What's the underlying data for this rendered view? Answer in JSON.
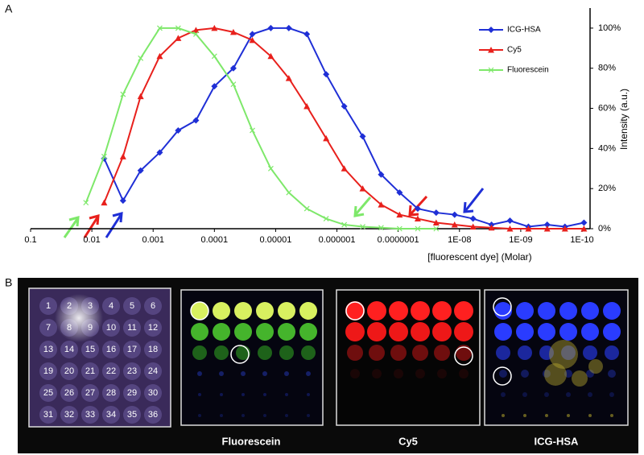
{
  "panel_labels": [
    "A",
    "B"
  ],
  "chart_data": {
    "type": "line",
    "x_label": "[fluorescent dye] (Molar)",
    "y_label": "Intensity (a.u.)",
    "x_scale": "log",
    "y_axis_side": "right",
    "legend": "top-right",
    "grid": false,
    "x": [
      0.0125,
      0.0063,
      0.0031,
      0.0016,
      0.00078,
      0.00039,
      0.0002,
      0.0001,
      4.9e-05,
      2.4e-05,
      1.2e-05,
      6.1e-06,
      3.1e-06,
      1.5e-06,
      7.6e-07,
      3.8e-07,
      1.9e-07,
      9.5e-08,
      4.8e-08,
      2.4e-08,
      1.2e-08,
      6e-09,
      3e-09,
      1.5e-09,
      7.5e-10,
      3.7e-10,
      1.9e-10,
      9.3e-11
    ],
    "series": [
      {
        "name": "ICG-HSA",
        "color": "#1f2fd6",
        "marker": "diamond",
        "values": [
          null,
          35,
          14,
          29,
          38,
          49,
          54,
          71,
          80,
          97,
          100,
          100,
          97,
          77,
          61,
          46,
          27,
          18,
          10,
          8,
          7,
          5,
          2,
          4,
          1,
          2,
          1,
          3
        ]
      },
      {
        "name": "Cy5",
        "color": "#e8201c",
        "marker": "triangle",
        "values": [
          null,
          13,
          36,
          66,
          86,
          95,
          99,
          100,
          98,
          94,
          86,
          75,
          61,
          45,
          30,
          20,
          12,
          7,
          5,
          3,
          2,
          1,
          0.5,
          0,
          0,
          0,
          0,
          0
        ]
      },
      {
        "name": "Fluorescein",
        "color": "#7ee86a",
        "marker": "x",
        "values": [
          13,
          36,
          67,
          85,
          100,
          100,
          97,
          86,
          72,
          49,
          30,
          18,
          10,
          5,
          2,
          1,
          0.5,
          0,
          0,
          0,
          null,
          null,
          null,
          null,
          null,
          null,
          null,
          null
        ]
      }
    ],
    "xlim": [
      0.1,
      1e-10
    ],
    "xticks": [
      0.1,
      0.01,
      0.001,
      0.0001,
      1e-05,
      1e-06,
      {
        "value": 1e-07,
        "label": "0.0000001"
      },
      {
        "value": 1e-08,
        "label": "1E-08"
      },
      {
        "value": 1e-09,
        "label": "1E-09"
      },
      {
        "value": 1e-10,
        "label": "1E-10"
      }
    ],
    "ylim": [
      0,
      110
    ],
    "yticks": [
      {
        "value": 0,
        "label": "0%"
      },
      {
        "value": 20,
        "label": "20%"
      },
      {
        "value": 40,
        "label": "40%"
      },
      {
        "value": 60,
        "label": "60%"
      },
      {
        "value": 80,
        "label": "80%"
      },
      {
        "value": 100,
        "label": "100%"
      }
    ]
  },
  "panel_b": {
    "captions": [
      "Fluorescein",
      "Cy5",
      "ICG-HSA"
    ],
    "well_numbers": [
      1,
      2,
      3,
      4,
      5,
      6,
      7,
      8,
      9,
      10,
      11,
      12,
      13,
      14,
      15,
      16,
      17,
      18,
      19,
      20,
      21,
      22,
      23,
      24,
      25,
      26,
      27,
      28,
      29,
      30,
      31,
      32,
      33,
      34,
      35,
      36
    ]
  }
}
